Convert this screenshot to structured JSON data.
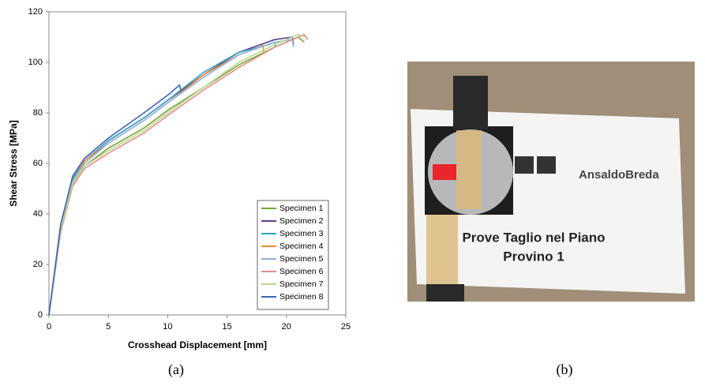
{
  "chart_data": {
    "type": "line",
    "xlabel": "Crosshead Displacement [mm]",
    "ylabel": "Shear Stress [MPa]",
    "xlim": [
      0,
      25
    ],
    "xticks": [
      0,
      5,
      10,
      15,
      20,
      25
    ],
    "ylim": [
      0,
      120
    ],
    "yticks": [
      0,
      20,
      40,
      60,
      80,
      100,
      120
    ],
    "grid": false,
    "legend": "lower right",
    "series": [
      {
        "name": "Specimen 1",
        "color": "#77a33a",
        "x": [
          0,
          1,
          2,
          3,
          5,
          8,
          10,
          13,
          16,
          19,
          21,
          21.5
        ],
        "values": [
          0,
          34,
          52,
          59,
          66,
          74,
          81,
          90,
          99,
          106,
          110,
          108
        ]
      },
      {
        "name": "Specimen 2",
        "color": "#5b3f8c",
        "x": [
          0,
          1,
          2,
          3,
          5,
          8,
          10,
          13,
          16,
          19,
          20.5,
          20.6
        ],
        "values": [
          0,
          36,
          54,
          61,
          69,
          78,
          85,
          95,
          104,
          109,
          110,
          107
        ]
      },
      {
        "name": "Specimen 3",
        "color": "#34a3c4",
        "x": [
          0,
          1,
          2,
          3,
          5,
          8,
          10,
          13,
          16,
          18.5,
          19,
          19.1
        ],
        "values": [
          0,
          35,
          54,
          61,
          69,
          78,
          85,
          96,
          104,
          107,
          108,
          106
        ]
      },
      {
        "name": "Specimen 4",
        "color": "#f08c2c",
        "x": [
          0,
          1,
          2,
          3,
          5,
          8,
          10,
          13,
          16,
          17.8,
          18,
          18.1
        ],
        "values": [
          0,
          35,
          53,
          61,
          68,
          77,
          84,
          95,
          103,
          106,
          107,
          104
        ]
      },
      {
        "name": "Specimen 5",
        "color": "#8fb3e0",
        "x": [
          0,
          1,
          2,
          3,
          5,
          8,
          10,
          13,
          16,
          19,
          20.5,
          20.6
        ],
        "values": [
          0,
          35,
          53,
          60,
          68,
          77,
          84,
          94,
          103,
          108,
          109,
          106
        ]
      },
      {
        "name": "Specimen 6",
        "color": "#e68a8a",
        "x": [
          0,
          1,
          2,
          3,
          5,
          8,
          10,
          13,
          16,
          19,
          21.5,
          21.8
        ],
        "values": [
          0,
          33,
          51,
          58,
          64,
          72,
          79,
          89,
          98,
          106,
          111,
          109
        ]
      },
      {
        "name": "Specimen 7",
        "color": "#b7d98c",
        "x": [
          0,
          1,
          2,
          3,
          5,
          8,
          10,
          13,
          16,
          19,
          21,
          21.6
        ],
        "values": [
          0,
          34,
          52,
          59,
          65,
          73,
          80,
          90,
          100,
          107,
          111,
          110
        ]
      },
      {
        "name": "Specimen 8",
        "color": "#3c64b4",
        "x": [
          0,
          1,
          2,
          3,
          5,
          8,
          10,
          11,
          11.1
        ],
        "values": [
          0,
          36,
          55,
          62,
          70,
          80,
          87,
          91,
          89
        ]
      }
    ]
  },
  "captions": [
    "(a)",
    "(b)"
  ],
  "photo": {
    "texts": [
      "AnsaldoBreda",
      "Prove Taglio nel Piano",
      "Provino 1"
    ]
  }
}
